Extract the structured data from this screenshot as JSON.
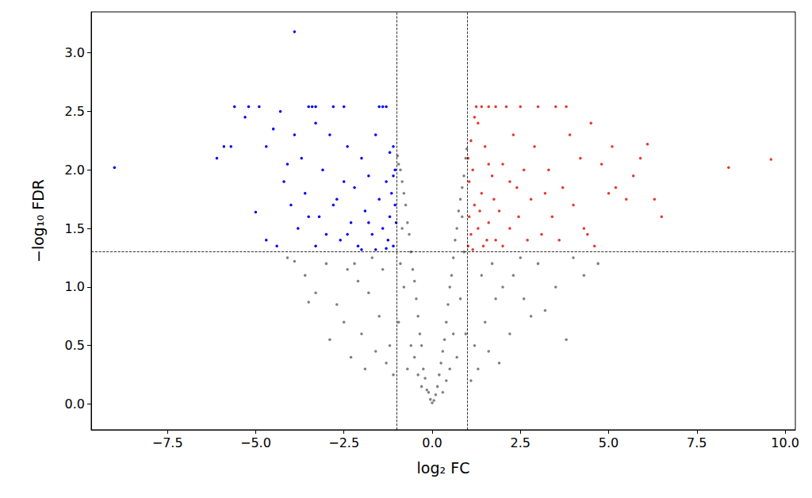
{
  "chart_data": {
    "type": "scatter",
    "x_label": "log₂ FC",
    "y_label": "−log₁₀ FDR",
    "xlim": [
      -9.66,
      10.29
    ],
    "ylim": [
      -0.22,
      3.35
    ],
    "xticks": [
      {
        "value": -7.5,
        "label": "−7.5"
      },
      {
        "value": -5,
        "label": "−5.0"
      },
      {
        "value": -2.5,
        "label": "−2.5"
      },
      {
        "value": 0,
        "label": "0.0"
      },
      2.5,
      {
        "value": 5,
        "label": "5.0"
      },
      7.5,
      {
        "value": 10,
        "label": "10.0"
      }
    ],
    "yticks": [
      {
        "value": 0,
        "label": "0.0"
      },
      0.5,
      {
        "value": 1,
        "label": "1.0"
      },
      1.5,
      {
        "value": 2,
        "label": "2.0"
      },
      2.5,
      {
        "value": 3,
        "label": "3.0"
      }
    ],
    "grid": false,
    "vlines": [
      -1,
      1
    ],
    "hlines": [
      1.3
    ],
    "series": [
      {
        "color": "#808080",
        "x": [
          0,
          0.05,
          -0.05,
          0.1,
          -0.1,
          0.15,
          -0.15,
          0.2,
          -0.2,
          0.25,
          -0.25,
          0.3,
          -0.3,
          0.35,
          -0.35,
          0.4,
          -0.4,
          0.45,
          -0.45,
          0.5,
          -0.5,
          0.55,
          -0.55,
          0.6,
          -0.6,
          0.65,
          -0.65,
          0.7,
          -0.7,
          0.75,
          -0.75,
          0.8,
          -0.8,
          0.85,
          -0.85,
          0.9,
          -0.9,
          0.95,
          -0.95,
          0.98,
          -0.98,
          0.3,
          -0.3,
          0.5,
          -0.5,
          0.6,
          -0.6,
          0.8,
          -0.8,
          0.9,
          -0.9,
          0.7,
          -0.7,
          0.95,
          -0.95,
          0.4,
          -0.4,
          0.85,
          -0.85,
          1.2,
          1.5,
          1.8,
          2.0,
          2.3,
          2.6,
          3.0,
          3.2,
          3.5,
          4.0,
          4.3,
          4.7,
          1.1,
          1.3,
          1.6,
          2.2,
          2.8,
          1.4,
          1.7,
          2.5,
          3.8,
          1.9,
          -1.2,
          -1.5,
          -1.8,
          -2.1,
          -2.4,
          -2.7,
          -3.0,
          -3.3,
          -3.5,
          -3.9,
          -4.1,
          -1.1,
          -1.3,
          -1.6,
          -2.0,
          -2.5,
          -2.9,
          -1.4,
          -1.7,
          -2.2,
          -3.6,
          -1.9,
          -2.3
        ],
        "values": [
          0.01,
          0.03,
          0.04,
          0.08,
          0.1,
          0.15,
          0.12,
          0.25,
          0.22,
          0.35,
          0.3,
          0.45,
          0.5,
          0.55,
          0.6,
          0.7,
          0.75,
          0.85,
          0.9,
          1.0,
          1.05,
          1.1,
          1.15,
          1.25,
          1.3,
          1.4,
          1.45,
          1.5,
          1.55,
          1.65,
          1.7,
          1.75,
          1.8,
          1.85,
          1.9,
          1.95,
          2.0,
          2.1,
          2.05,
          2.18,
          2.12,
          0.1,
          0.15,
          0.3,
          0.4,
          0.6,
          0.5,
          0.9,
          1.0,
          1.3,
          1.2,
          0.4,
          0.3,
          0.6,
          0.7,
          0.2,
          0.25,
          1.6,
          1.5,
          0.5,
          0.7,
          0.9,
          1.0,
          1.1,
          0.9,
          1.2,
          0.8,
          1.0,
          1.25,
          1.1,
          1.2,
          0.2,
          0.3,
          0.45,
          0.6,
          0.75,
          1.1,
          1.2,
          1.25,
          0.55,
          0.35,
          0.5,
          0.75,
          0.95,
          1.05,
          1.15,
          0.85,
          1.2,
          0.95,
          0.87,
          1.22,
          1.25,
          0.25,
          0.35,
          0.45,
          0.6,
          0.7,
          0.55,
          1.15,
          1.25,
          1.2,
          1.1,
          0.3,
          0.4
        ]
      },
      {
        "color": "#0000ff",
        "x": [
          -9.0,
          -3.9,
          -6.1,
          -5.9,
          -5.6,
          -5.2,
          -5.0,
          -5.3,
          -5.7,
          -4.9,
          -4.7,
          -4.5,
          -4.4,
          -4.3,
          -4.2,
          -4.1,
          -4.0,
          -3.9,
          -3.8,
          -3.7,
          -3.6,
          -3.5,
          -3.4,
          -3.3,
          -3.3,
          -3.2,
          -3.1,
          -3.0,
          -2.9,
          -2.8,
          -2.7,
          -2.6,
          -2.5,
          -2.5,
          -2.4,
          -2.3,
          -2.2,
          -2.1,
          -2.0,
          -1.9,
          -1.8,
          -1.7,
          -1.6,
          -1.5,
          -1.5,
          -1.4,
          -1.4,
          -1.3,
          -1.3,
          -1.25,
          -1.2,
          -1.2,
          -1.15,
          -1.1,
          -1.1,
          -1.05,
          -1.05,
          -1.02,
          -1.3,
          -1.6,
          -2.0,
          -2.4,
          -3.5,
          -4.7,
          -3.3,
          -2.8,
          -1.8,
          -1.1
        ],
        "values": [
          2.02,
          3.18,
          2.1,
          2.2,
          2.54,
          2.54,
          1.64,
          2.45,
          2.2,
          2.54,
          2.2,
          2.35,
          1.35,
          2.5,
          1.9,
          2.05,
          1.7,
          2.3,
          1.5,
          2.1,
          1.8,
          2.54,
          2.54,
          2.54,
          2.4,
          1.6,
          2.0,
          1.45,
          2.3,
          2.54,
          1.75,
          1.4,
          2.54,
          1.9,
          2.2,
          1.55,
          1.85,
          1.35,
          2.1,
          1.65,
          1.95,
          1.45,
          2.3,
          2.54,
          1.75,
          2.54,
          1.5,
          2.54,
          1.9,
          1.4,
          2.15,
          1.6,
          1.8,
          2.2,
          1.35,
          1.7,
          2.0,
          1.55,
          1.33,
          1.32,
          1.32,
          1.45,
          1.6,
          1.4,
          1.35,
          1.7,
          1.55,
          1.95
        ]
      },
      {
        "color": "#e8382c",
        "x": [
          9.6,
          8.4,
          6.5,
          6.1,
          6.3,
          5.9,
          5.7,
          5.5,
          5.2,
          5.0,
          5.1,
          4.8,
          4.6,
          4.5,
          4.3,
          4.2,
          4.0,
          3.9,
          3.8,
          3.7,
          3.5,
          3.4,
          3.3,
          3.1,
          3.0,
          2.9,
          2.8,
          2.7,
          2.6,
          2.5,
          2.4,
          2.3,
          2.2,
          2.1,
          2.0,
          1.9,
          1.8,
          1.8,
          1.7,
          1.6,
          1.6,
          1.5,
          1.45,
          1.4,
          1.4,
          1.3,
          1.3,
          1.25,
          1.2,
          1.15,
          1.1,
          1.1,
          1.05,
          1.05,
          1.02,
          1.02,
          1.15,
          1.35,
          1.55,
          1.75,
          2.0,
          2.45,
          3.2,
          3.6,
          4.4,
          1.2,
          1.6,
          2.2
        ],
        "values": [
          2.09,
          2.02,
          1.6,
          2.22,
          1.75,
          2.1,
          1.95,
          1.75,
          1.85,
          1.8,
          2.2,
          2.05,
          1.35,
          2.4,
          1.5,
          2.1,
          1.7,
          2.3,
          2.54,
          1.85,
          2.54,
          1.6,
          2.0,
          1.45,
          2.54,
          2.2,
          1.75,
          1.4,
          2.0,
          2.54,
          1.85,
          2.3,
          1.5,
          2.54,
          2.05,
          1.65,
          2.54,
          1.4,
          1.95,
          2.54,
          1.55,
          2.2,
          1.35,
          2.54,
          1.8,
          2.4,
          1.5,
          2.54,
          1.7,
          2.0,
          1.45,
          2.25,
          1.6,
          1.9,
          2.1,
          1.35,
          1.32,
          1.65,
          1.4,
          1.75,
          1.35,
          1.6,
          1.8,
          1.4,
          1.45,
          2.45,
          2.05,
          1.9
        ]
      }
    ]
  }
}
